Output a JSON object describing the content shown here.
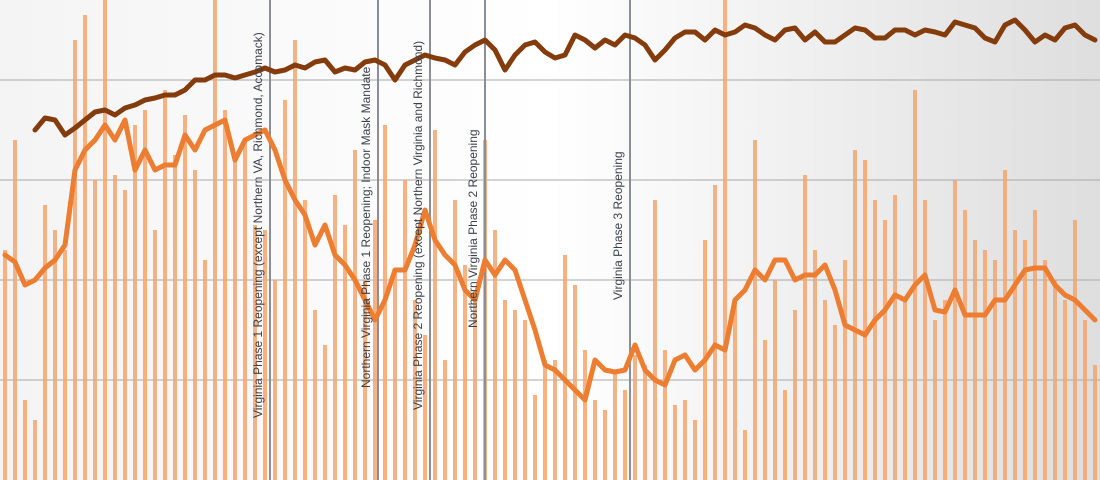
{
  "chart_data": {
    "type": "bar_line",
    "categories": [
      null,
      null,
      null,
      null,
      null,
      null,
      null,
      null,
      null,
      null,
      null,
      null,
      null,
      null,
      null,
      null,
      null,
      null,
      null,
      null,
      null,
      null,
      null,
      null,
      null,
      null,
      null,
      null,
      null,
      null,
      null,
      null,
      null,
      null,
      null,
      null,
      null,
      null,
      null,
      null,
      null,
      null,
      null,
      null,
      null,
      null,
      null,
      null,
      null,
      null,
      null,
      null,
      null,
      null,
      null,
      null,
      null,
      null,
      null,
      null,
      null,
      null,
      null,
      null,
      null,
      null,
      null,
      null,
      null,
      null,
      null,
      null,
      null,
      null,
      null,
      null,
      null,
      null,
      null,
      null,
      null,
      null,
      null,
      null,
      null,
      null,
      null,
      null,
      null,
      null,
      null,
      null,
      null,
      null,
      null,
      null,
      null,
      null,
      null,
      null,
      null,
      null,
      null,
      null,
      null,
      null,
      null,
      null,
      null,
      null
    ],
    "ylim": [
      0,
      4.8
    ],
    "yticks": [
      1,
      2,
      3,
      4
    ],
    "grid": true,
    "series": [
      {
        "kind": "bar",
        "color": "#f4a46c",
        "values": [
          2.3,
          3.4,
          0.8,
          0.6,
          2.75,
          2.5,
          2.3,
          4.4,
          4.65,
          3.0,
          4.8,
          3.05,
          2.9,
          3.55,
          3.7,
          2.5,
          3.9,
          3.25,
          3.65,
          3.1,
          2.2,
          4.8,
          3.7,
          3.2,
          3.4,
          2.55,
          2.5,
          2.0,
          3.8,
          4.4,
          2.8,
          1.7,
          1.35,
          2.85,
          2.55,
          3.3,
          2.0,
          2.6,
          3.55,
          2.1,
          3.0,
          1.8,
          1.45,
          3.5,
          1.2,
          2.8,
          2.15,
          1.9,
          3.4,
          2.5,
          1.8,
          1.7,
          1.6,
          0.85,
          1.2,
          1.2,
          2.25,
          1.95,
          1.3,
          0.8,
          0.7,
          1.1,
          0.9,
          1.25,
          1.15,
          2.8,
          1.3,
          0.75,
          0.8,
          0.6,
          2.4,
          2.95,
          4.8,
          1.8,
          0.5,
          3.4,
          1.4,
          2.0,
          0.9,
          1.7,
          3.05,
          2.3,
          1.8,
          1.55,
          2.2,
          3.3,
          3.2,
          2.8,
          2.6,
          2.85,
          1.8,
          3.9,
          2.8,
          1.6,
          1.8,
          3.0,
          2.7,
          2.4,
          2.3,
          2.2,
          3.1,
          2.5,
          2.4,
          2.7,
          2.2,
          2.0,
          1.8,
          2.6,
          1.6,
          1.15
        ]
      },
      {
        "kind": "line",
        "color": "#ed7d31",
        "values": [
          2.25,
          2.18,
          1.95,
          2.0,
          2.12,
          2.2,
          2.35,
          3.1,
          3.3,
          3.4,
          3.55,
          3.4,
          3.6,
          3.1,
          3.3,
          3.1,
          3.15,
          3.15,
          3.45,
          3.3,
          3.5,
          3.55,
          3.6,
          3.2,
          3.4,
          3.45,
          3.5,
          3.3,
          3.0,
          2.8,
          2.65,
          2.35,
          2.55,
          2.25,
          2.15,
          2.0,
          1.8,
          1.6,
          1.8,
          2.1,
          2.1,
          2.35,
          2.7,
          2.4,
          2.25,
          2.15,
          1.9,
          1.8,
          2.2,
          2.05,
          2.2,
          2.1,
          1.8,
          1.5,
          1.15,
          1.1,
          1.0,
          0.9,
          0.8,
          1.2,
          1.1,
          1.08,
          1.1,
          1.35,
          1.1,
          1.0,
          0.95,
          1.2,
          1.25,
          1.1,
          1.2,
          1.35,
          1.3,
          1.8,
          1.9,
          2.1,
          2.0,
          2.2,
          2.2,
          2.0,
          2.05,
          2.05,
          2.15,
          1.9,
          1.55,
          1.5,
          1.45,
          1.6,
          1.7,
          1.85,
          1.8,
          1.95,
          2.05,
          1.7,
          1.68,
          1.9,
          1.65,
          1.65,
          1.65,
          1.8,
          1.8,
          1.95,
          2.1,
          2.12,
          2.12,
          1.95,
          1.85,
          1.8,
          1.7,
          1.6
        ]
      },
      {
        "kind": "line",
        "color": "#843c0c",
        "values": [
          null,
          null,
          null,
          3.5,
          3.62,
          3.6,
          3.45,
          3.52,
          3.6,
          3.68,
          3.7,
          3.65,
          3.72,
          3.75,
          3.8,
          3.82,
          3.85,
          3.85,
          3.9,
          4.0,
          4.0,
          4.05,
          4.05,
          4.02,
          4.05,
          4.08,
          4.12,
          4.08,
          4.1,
          4.15,
          4.12,
          4.18,
          4.2,
          4.08,
          4.12,
          4.1,
          4.18,
          4.2,
          4.15,
          4.0,
          4.15,
          4.2,
          4.25,
          4.22,
          4.2,
          4.15,
          4.28,
          4.35,
          4.4,
          4.3,
          4.1,
          4.25,
          4.35,
          4.38,
          4.28,
          4.22,
          4.25,
          4.45,
          4.4,
          4.32,
          4.4,
          4.35,
          4.45,
          4.42,
          4.35,
          4.2,
          4.3,
          4.42,
          4.48,
          4.48,
          4.4,
          4.5,
          4.45,
          4.48,
          4.55,
          4.52,
          4.45,
          4.4,
          4.5,
          4.52,
          4.4,
          4.48,
          4.38,
          4.38,
          4.45,
          4.52,
          4.5,
          4.42,
          4.42,
          4.5,
          4.5,
          4.45,
          4.5,
          4.48,
          4.45,
          4.58,
          4.55,
          4.52,
          4.42,
          4.38,
          4.55,
          4.6,
          4.5,
          4.38,
          4.45,
          4.4,
          4.52,
          4.55,
          4.45,
          4.4
        ]
      }
    ],
    "annotations": [
      {
        "x": 26.5,
        "text": "Virginia Phase 1 Reopening (except Northern VA, Richmond, Accomack)"
      },
      {
        "x": 37.3,
        "text": "Northern Virginia Phase 1 Reopening; Indoor Mask Mandate"
      },
      {
        "x": 42.5,
        "text": "Virginia Phase 2 Reopening (except Northern Virginia and Richmond)"
      },
      {
        "x": 48,
        "text": "Northern Virginia Phase 2 Reopening"
      },
      {
        "x": 62.5,
        "text": "Virginia Phase 3 Reopening"
      }
    ]
  }
}
